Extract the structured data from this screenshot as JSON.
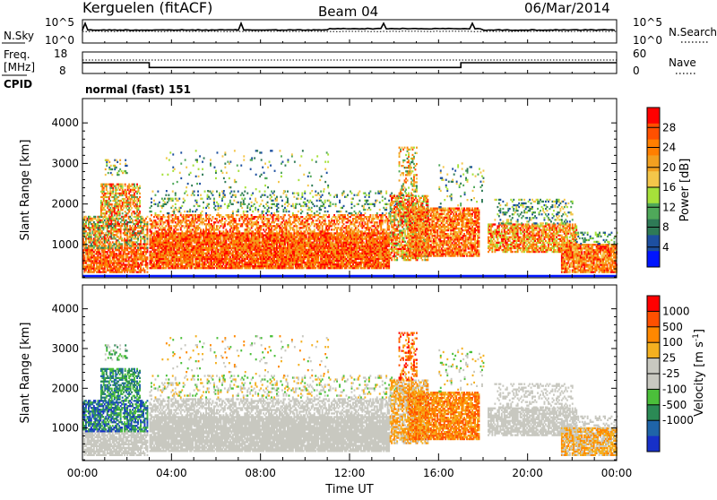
{
  "header": {
    "station": "Kerguelen (fitACF)",
    "beam": "Beam 04",
    "date": "06/Mar/2014"
  },
  "noise_panel": {
    "left_label": "N.Sky",
    "right_label": "N.Search",
    "left_ticks": [
      "10^5",
      "10^0"
    ],
    "right_ticks": [
      "10^5",
      "10^0"
    ]
  },
  "freq_panel": {
    "left_label_line1": "Freq.",
    "left_label_line2": "[MHz]",
    "right_label": "Nave",
    "left_ticks": [
      "18",
      "8"
    ],
    "right_ticks": [
      "60",
      "0"
    ],
    "freq_values": [
      13,
      10.8,
      13
    ],
    "freq_change_times": [
      0,
      3,
      17,
      24
    ]
  },
  "cpid": {
    "label": "CPID",
    "value": "normal (fast) 151"
  },
  "chart_data": [
    {
      "type": "heatmap",
      "name": "Power",
      "ylabel": "Slant Range [km]",
      "xlabel": "Time UT",
      "xlim": [
        0,
        24
      ],
      "ylim": [
        180,
        4600
      ],
      "y_ticks": [
        "1000",
        "2000",
        "3000",
        "4000"
      ],
      "x_ticks": [
        "00:00",
        "04:00",
        "08:00",
        "12:00",
        "16:00",
        "20:00",
        "00:00"
      ],
      "colorbar": {
        "label": "Power [dB]",
        "ticks": [
          "4",
          "8",
          "12",
          "16",
          "20",
          "24",
          "28"
        ],
        "range": [
          0,
          32
        ],
        "colors": [
          "#0015ff",
          "#1d4fa0",
          "#2e7a56",
          "#4fa85a",
          "#a6e13a",
          "#f4c64a",
          "#f2a020",
          "#ff7f00",
          "#ff5000",
          "#ff0000"
        ]
      }
    },
    {
      "type": "heatmap",
      "name": "Velocity",
      "ylabel": "Slant Range [km]",
      "xlabel": "Time UT",
      "xlim": [
        0,
        24
      ],
      "ylim": [
        180,
        4600
      ],
      "y_ticks": [
        "1000",
        "2000",
        "3000",
        "4000"
      ],
      "x_ticks": [
        "00:00",
        "04:00",
        "08:00",
        "12:00",
        "16:00",
        "20:00",
        "00:00"
      ],
      "colorbar": {
        "label": "Velocity [m s",
        "label_sup": "-1",
        "label_end": "]",
        "ticks": [
          "1000",
          "500",
          "100",
          "25",
          "-25",
          "-100",
          "-500",
          "-1000"
        ],
        "colors": [
          "#1730c8",
          "#1f64a8",
          "#2b8a55",
          "#4bbf3a",
          "#c8c8c0",
          "#c8c8c0",
          "#f4b020",
          "#ff8800",
          "#ff5000",
          "#ff0000"
        ]
      }
    }
  ],
  "x_axis_title": "Time UT"
}
